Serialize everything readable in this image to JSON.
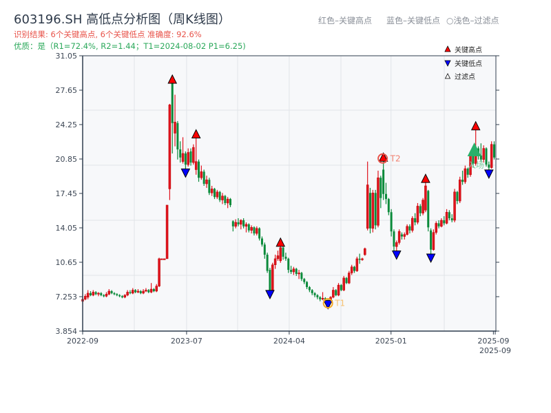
{
  "header": {
    "title": "603196.SH 高低点分析图（周K线图）",
    "result_line": "识别结果: 6个关键高点, 6个关键低点   准确度: 92.6%",
    "quality_line": "优质：是（R1=72.4%, R2=1.44；T1=2024-08-02 P1=6.25)",
    "note_red": "红色–关键高点",
    "note_blue": "蓝色–关键低点",
    "note_light": "○浅色–过滤点"
  },
  "chart_data": {
    "type": "candlestick",
    "title": "603196.SH 高低点分析图（周K线图）",
    "ylim": [
      3.854,
      31.05
    ],
    "y_ticks": [
      "31.05",
      "27.65",
      "24.25",
      "20.85",
      "17.45",
      "14.05",
      "10.65",
      "7.253",
      "3.854"
    ],
    "x_ticks": [
      {
        "label": "2022-09",
        "index": 0
      },
      {
        "label": "2023-07",
        "index": 39.4
      },
      {
        "label": "2024-04",
        "index": 78.3
      },
      {
        "label": "2025-01",
        "index": 116.9
      },
      {
        "label": "2025-09",
        "index": 155.7
      },
      {
        "label": "2025-09",
        "index": 156.4
      }
    ],
    "grid": true,
    "colors": {
      "up": "#e0141e",
      "down": "#0a8a3a",
      "key_high": "#ff0000",
      "key_low": "#0000ff",
      "t1": "#f5a623",
      "t2": "#e8534a",
      "entry": "#2ab06a",
      "plot_bg": "#f7f8fa",
      "grid": "#e1e4e8",
      "axis": "#2f3d4e"
    },
    "legend": {
      "placement": "top-right",
      "items": [
        {
          "label": "关键高点",
          "icon": "red-up-triangle"
        },
        {
          "label": "关键低点",
          "icon": "blue-down-triangle"
        },
        {
          "label": "过滤点",
          "icon": "white-up-triangle"
        }
      ]
    },
    "candles_ohlc": [
      [
        6.8,
        7.2,
        6.6,
        7.0
      ],
      [
        7.0,
        7.5,
        6.9,
        7.3
      ],
      [
        7.2,
        7.9,
        7.0,
        7.6
      ],
      [
        7.6,
        7.8,
        7.3,
        7.4
      ],
      [
        7.4,
        7.9,
        7.3,
        7.7
      ],
      [
        7.7,
        7.8,
        7.4,
        7.5
      ],
      [
        7.5,
        7.7,
        7.3,
        7.6
      ],
      [
        7.6,
        7.7,
        7.3,
        7.4
      ],
      [
        7.4,
        7.5,
        7.2,
        7.3
      ],
      [
        7.3,
        7.7,
        7.2,
        7.5
      ],
      [
        7.5,
        8.0,
        7.4,
        7.8
      ],
      [
        7.8,
        7.9,
        7.5,
        7.6
      ],
      [
        7.6,
        7.7,
        7.4,
        7.5
      ],
      [
        7.5,
        7.6,
        7.3,
        7.4
      ],
      [
        7.4,
        7.5,
        7.2,
        7.3
      ],
      [
        7.3,
        7.4,
        7.1,
        7.2
      ],
      [
        7.2,
        7.5,
        7.1,
        7.4
      ],
      [
        7.4,
        7.9,
        7.3,
        7.7
      ],
      [
        7.7,
        7.9,
        7.5,
        7.6
      ],
      [
        7.6,
        8.1,
        7.5,
        7.9
      ],
      [
        7.9,
        8.0,
        7.6,
        7.7
      ],
      [
        7.7,
        8.0,
        7.6,
        7.8
      ],
      [
        7.8,
        7.9,
        7.5,
        7.6
      ],
      [
        7.6,
        8.0,
        7.5,
        7.8
      ],
      [
        7.8,
        8.1,
        7.7,
        7.9
      ],
      [
        7.9,
        8.0,
        7.6,
        7.7
      ],
      [
        7.7,
        8.6,
        7.6,
        8.0
      ],
      [
        8.0,
        8.1,
        7.7,
        7.8
      ],
      [
        7.8,
        8.5,
        7.7,
        8.3
      ],
      [
        8.3,
        11.1,
        8.2,
        11.0
      ],
      [
        11.0,
        11.0,
        10.9,
        11.0
      ],
      [
        11.0,
        11.0,
        10.9,
        11.0
      ],
      [
        11.0,
        16.3,
        11.0,
        16.3
      ],
      [
        17.9,
        26.3,
        16.8,
        26.2
      ],
      [
        28.3,
        28.6,
        21.4,
        24.4
      ],
      [
        23.4,
        27.2,
        22.1,
        24.5
      ],
      [
        24.4,
        24.6,
        20.8,
        21.8
      ],
      [
        21.8,
        22.6,
        20.5,
        21.0
      ],
      [
        20.6,
        23.0,
        20.4,
        21.4
      ],
      [
        21.4,
        21.6,
        19.6,
        20.3
      ],
      [
        20.3,
        21.9,
        20.1,
        21.5
      ],
      [
        21.6,
        21.9,
        20.2,
        20.5
      ],
      [
        20.5,
        22.3,
        20.3,
        22.0
      ],
      [
        19.8,
        23.2,
        19.3,
        20.6
      ],
      [
        20.6,
        20.8,
        18.6,
        19.0
      ],
      [
        19.0,
        20.2,
        18.8,
        19.6
      ],
      [
        19.6,
        19.8,
        18.2,
        18.4
      ],
      [
        18.4,
        19.2,
        18.0,
        18.8
      ],
      [
        18.8,
        19.0,
        17.3,
        17.5
      ],
      [
        17.5,
        18.2,
        17.2,
        17.9
      ],
      [
        17.9,
        18.0,
        16.9,
        17.1
      ],
      [
        17.1,
        17.8,
        16.9,
        17.6
      ],
      [
        17.6,
        17.7,
        16.6,
        16.8
      ],
      [
        16.8,
        17.5,
        16.4,
        17.2
      ],
      [
        17.2,
        17.3,
        16.3,
        16.5
      ],
      [
        16.5,
        17.1,
        16.0,
        16.9
      ],
      [
        16.9,
        17.0,
        16.1,
        16.3
      ],
      [
        14.7,
        14.8,
        13.7,
        14.2
      ],
      [
        14.2,
        14.9,
        14.0,
        14.6
      ],
      [
        14.6,
        15.0,
        14.2,
        14.4
      ],
      [
        14.4,
        14.9,
        13.9,
        14.8
      ],
      [
        14.8,
        15.0,
        14.0,
        14.2
      ],
      [
        14.2,
        14.6,
        13.6,
        14.4
      ],
      [
        14.4,
        14.5,
        13.6,
        13.8
      ],
      [
        13.8,
        14.3,
        13.5,
        14.1
      ],
      [
        14.1,
        14.2,
        13.3,
        13.5
      ],
      [
        13.5,
        14.2,
        13.3,
        14.0
      ],
      [
        14.0,
        14.1,
        12.8,
        13.0
      ],
      [
        13.0,
        13.2,
        12.2,
        12.4
      ],
      [
        12.4,
        12.6,
        11.0,
        11.4
      ],
      [
        11.4,
        11.6,
        9.6,
        9.8
      ],
      [
        9.9,
        10.1,
        7.6,
        7.9
      ],
      [
        7.9,
        10.6,
        7.8,
        10.4
      ],
      [
        10.4,
        11.4,
        10.0,
        11.0
      ],
      [
        11.0,
        11.8,
        10.8,
        11.3
      ],
      [
        10.8,
        12.5,
        10.6,
        12.1
      ],
      [
        12.1,
        12.2,
        10.9,
        11.2
      ],
      [
        11.2,
        11.6,
        10.8,
        11.0
      ],
      [
        11.0,
        11.1,
        9.6,
        9.9
      ],
      [
        9.9,
        10.3,
        9.5,
        9.7
      ],
      [
        9.7,
        10.2,
        9.4,
        10.0
      ],
      [
        10.0,
        10.1,
        9.3,
        9.5
      ],
      [
        9.5,
        9.9,
        9.0,
        9.6
      ],
      [
        9.6,
        9.7,
        8.8,
        9.0
      ],
      [
        9.0,
        9.1,
        8.5,
        8.7
      ],
      [
        8.7,
        8.8,
        8.0,
        8.2
      ],
      [
        8.2,
        8.3,
        7.7,
        7.9
      ],
      [
        7.9,
        8.0,
        7.4,
        7.6
      ],
      [
        7.6,
        7.7,
        7.2,
        7.4
      ],
      [
        7.4,
        7.5,
        7.0,
        7.2
      ],
      [
        7.2,
        7.3,
        6.8,
        7.0
      ],
      [
        7.0,
        7.7,
        6.9,
        7.1
      ],
      [
        7.1,
        7.2,
        6.7,
        6.9
      ],
      [
        6.9,
        7.0,
        6.6,
        6.8
      ],
      [
        6.8,
        7.3,
        6.7,
        7.2
      ],
      [
        7.2,
        8.2,
        7.1,
        7.9
      ],
      [
        7.9,
        8.0,
        7.3,
        7.4
      ],
      [
        7.4,
        8.6,
        7.3,
        8.4
      ],
      [
        8.4,
        8.5,
        7.8,
        7.9
      ],
      [
        7.9,
        9.3,
        7.8,
        9.1
      ],
      [
        9.1,
        9.2,
        8.5,
        8.6
      ],
      [
        8.6,
        9.8,
        8.5,
        9.6
      ],
      [
        9.6,
        10.4,
        9.4,
        10.2
      ],
      [
        10.2,
        10.3,
        9.6,
        9.8
      ],
      [
        9.8,
        11.2,
        9.7,
        11.0
      ],
      [
        11.0,
        11.5,
        10.5,
        10.9
      ],
      [
        10.9,
        11.1,
        10.8,
        11.0
      ],
      [
        11.4,
        12.1,
        11.3,
        12.0
      ],
      [
        14.0,
        20.6,
        13.8,
        18.3
      ],
      [
        17.5,
        18.0,
        13.5,
        14.0
      ],
      [
        14.0,
        17.8,
        13.6,
        17.5
      ],
      [
        17.5,
        17.8,
        13.9,
        14.3
      ],
      [
        14.3,
        19.7,
        14.1,
        19.0
      ],
      [
        19.0,
        19.2,
        16.0,
        17.0
      ],
      [
        19.8,
        20.9,
        16.8,
        17.4
      ],
      [
        17.4,
        18.5,
        16.4,
        16.9
      ],
      [
        16.9,
        17.0,
        15.3,
        15.6
      ],
      [
        15.6,
        15.9,
        13.2,
        13.7
      ],
      [
        13.7,
        13.9,
        11.8,
        12.2
      ],
      [
        12.2,
        12.8,
        11.5,
        12.6
      ],
      [
        12.6,
        13.9,
        12.4,
        13.7
      ],
      [
        13.4,
        13.6,
        12.9,
        13.2
      ],
      [
        13.2,
        13.6,
        12.9,
        13.4
      ],
      [
        13.4,
        14.4,
        13.3,
        14.2
      ],
      [
        14.2,
        14.4,
        13.5,
        13.8
      ],
      [
        13.8,
        15.2,
        13.6,
        15.0
      ],
      [
        15.0,
        15.5,
        14.3,
        14.6
      ],
      [
        14.6,
        16.5,
        14.4,
        16.2
      ],
      [
        16.2,
        16.4,
        15.2,
        15.5
      ],
      [
        15.5,
        17.0,
        15.3,
        16.8
      ],
      [
        15.8,
        18.8,
        15.6,
        18.2
      ],
      [
        17.7,
        17.8,
        13.7,
        14.1
      ],
      [
        13.8,
        14.0,
        11.2,
        11.9
      ],
      [
        11.9,
        13.9,
        11.8,
        13.6
      ],
      [
        13.6,
        14.7,
        13.4,
        14.5
      ],
      [
        14.5,
        14.8,
        14.0,
        14.2
      ],
      [
        14.2,
        15.0,
        14.1,
        14.8
      ],
      [
        14.8,
        15.2,
        14.3,
        14.5
      ],
      [
        14.5,
        15.9,
        14.4,
        15.6
      ],
      [
        15.6,
        15.8,
        14.8,
        15.0
      ],
      [
        15.0,
        15.4,
        14.6,
        14.8
      ],
      [
        14.8,
        17.9,
        14.6,
        17.6
      ],
      [
        17.6,
        17.7,
        16.4,
        16.7
      ],
      [
        16.7,
        19.1,
        16.5,
        18.8
      ],
      [
        18.8,
        19.7,
        18.3,
        18.6
      ],
      [
        18.6,
        20.2,
        18.4,
        19.9
      ],
      [
        19.9,
        20.0,
        19.0,
        19.3
      ],
      [
        19.3,
        21.6,
        19.1,
        21.2
      ],
      [
        21.2,
        21.8,
        20.0,
        20.4
      ],
      [
        20.4,
        24.0,
        20.2,
        21.9
      ],
      [
        21.9,
        22.1,
        20.8,
        21.2
      ],
      [
        21.2,
        22.4,
        20.6,
        20.8
      ],
      [
        20.8,
        22.2,
        20.5,
        21.9
      ],
      [
        21.9,
        22.0,
        20.1,
        20.3
      ],
      [
        20.3,
        20.6,
        19.5,
        20.0
      ],
      [
        20.0,
        22.6,
        19.9,
        22.3
      ],
      [
        22.3,
        22.6,
        20.8,
        21.0
      ]
    ],
    "key_highs": [
      {
        "index": 34,
        "price": 28.6
      },
      {
        "index": 43,
        "price": 23.2
      },
      {
        "index": 75,
        "price": 12.5
      },
      {
        "index": 114,
        "price": 20.9
      },
      {
        "index": 130,
        "price": 18.8
      },
      {
        "index": 149,
        "price": 24.0
      }
    ],
    "key_lows": [
      {
        "index": 39,
        "price": 19.6
      },
      {
        "index": 71,
        "price": 7.6
      },
      {
        "index": 93,
        "price": 6.6
      },
      {
        "index": 119,
        "price": 11.5
      },
      {
        "index": 132,
        "price": 11.2
      },
      {
        "index": 154,
        "price": 19.5
      }
    ],
    "annotations": [
      {
        "label": "T1",
        "index": 93,
        "price": 6.6,
        "marker": "orange-circle"
      },
      {
        "label": "T2",
        "index": 114,
        "price": 20.9,
        "marker": "red-circle"
      },
      {
        "label": "入场",
        "index": 149,
        "price": 21.8,
        "marker": "green-triangle"
      }
    ]
  }
}
